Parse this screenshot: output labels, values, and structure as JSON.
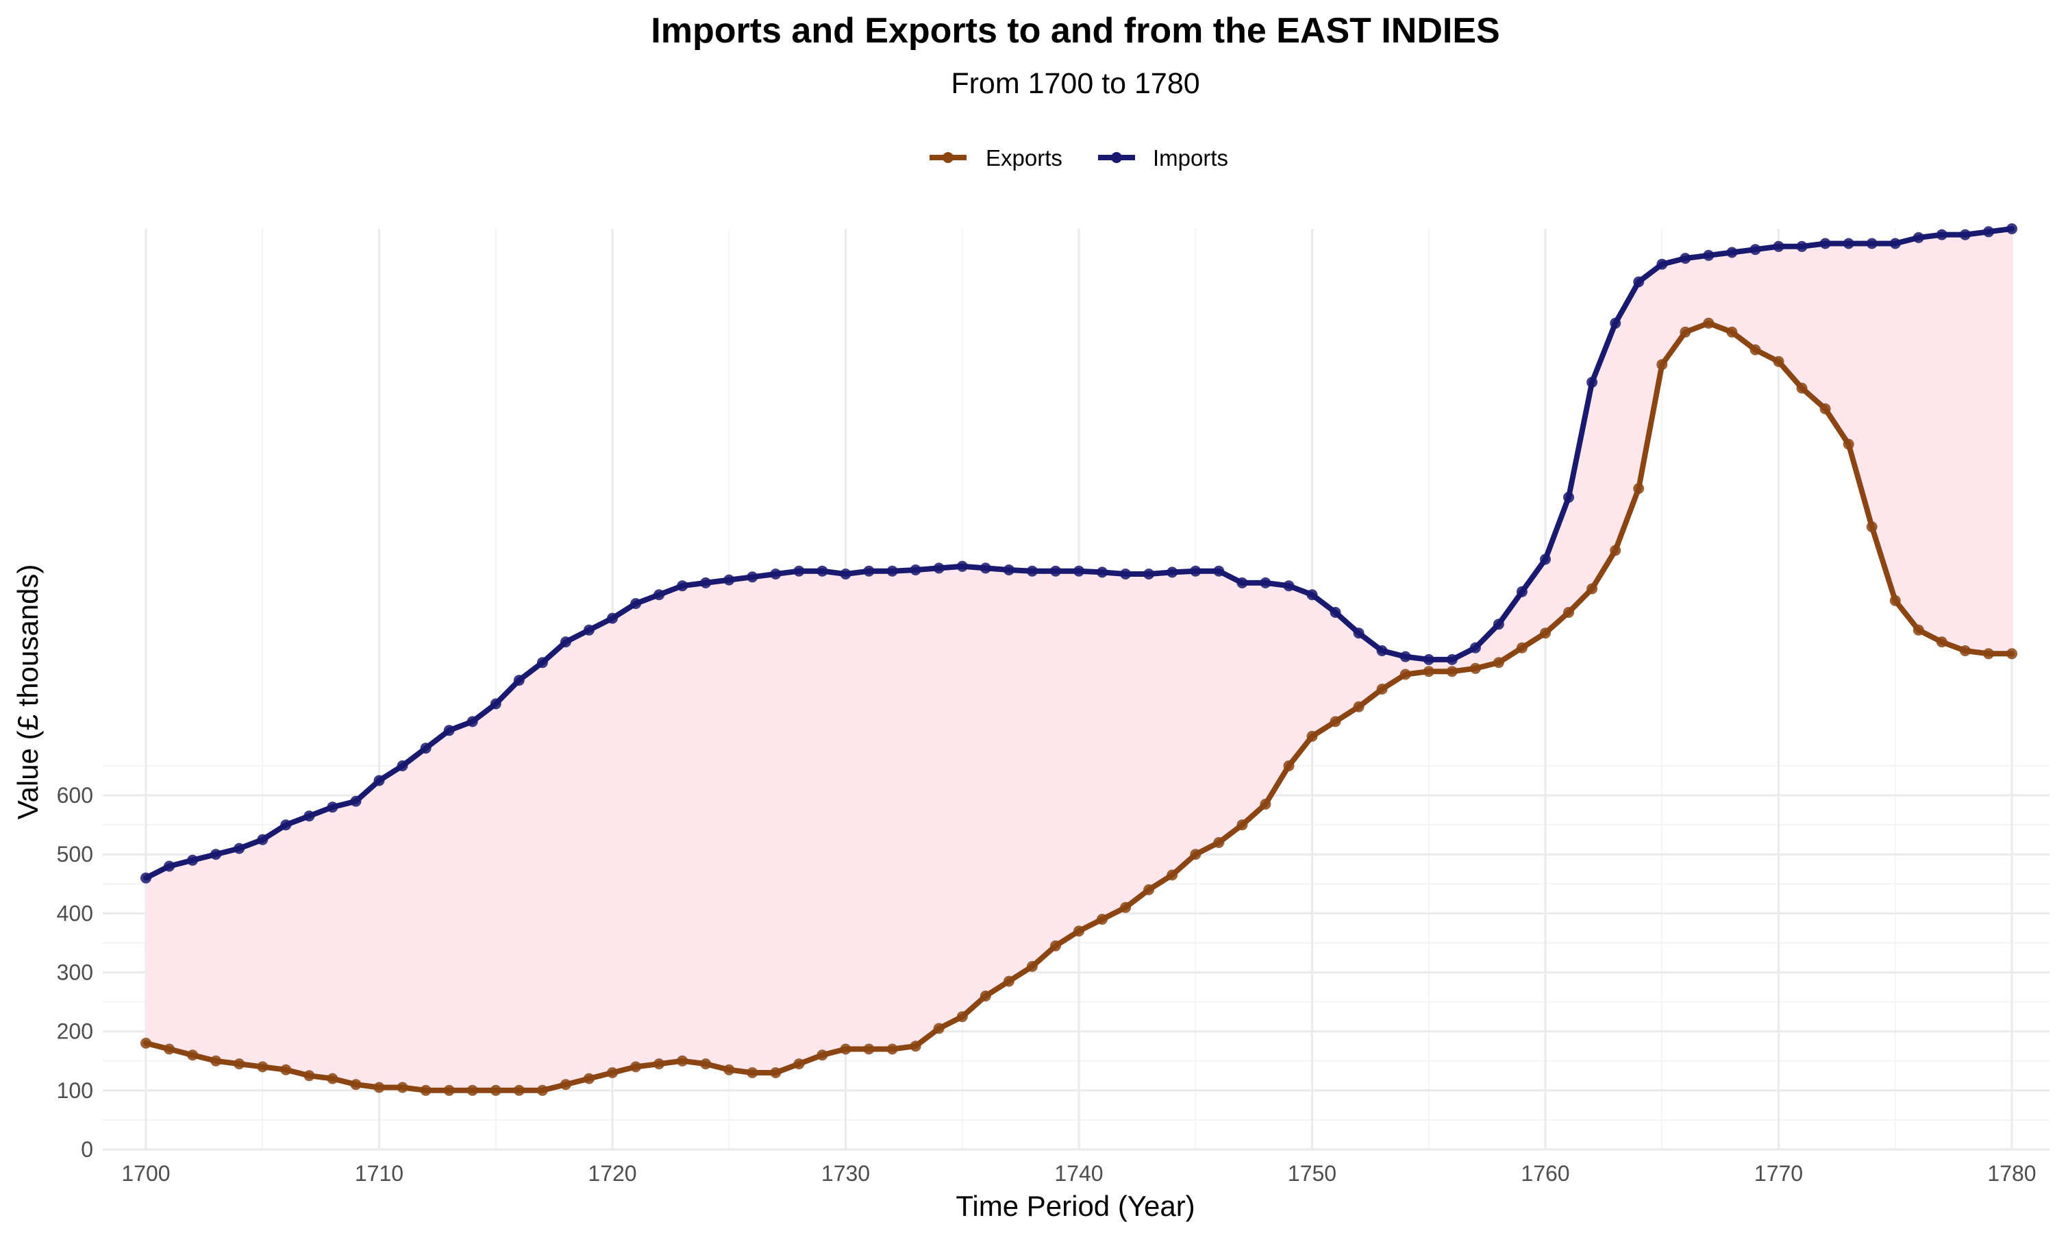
{
  "chart_data": {
    "type": "line",
    "title": "Imports and Exports to and from the EAST INDIES",
    "subtitle": "From 1700 to 1780",
    "xlabel": "Time Period (Year)",
    "ylabel": "Value (£ thousands)",
    "xlim": [
      1700,
      1780
    ],
    "ylim": [
      0,
      1560
    ],
    "x_ticks": [
      1700,
      1710,
      1720,
      1730,
      1740,
      1750,
      1760,
      1770,
      1780
    ],
    "y_ticks": [
      0,
      100,
      200,
      300,
      400,
      500,
      600
    ],
    "grid": true,
    "legend_position": "top",
    "fill_between": {
      "color": "#fde7ec",
      "description": "area between Imports and Exports"
    },
    "years": [
      1700,
      1701,
      1702,
      1703,
      1704,
      1705,
      1706,
      1707,
      1708,
      1709,
      1710,
      1711,
      1712,
      1713,
      1714,
      1715,
      1716,
      1717,
      1718,
      1719,
      1720,
      1721,
      1722,
      1723,
      1724,
      1725,
      1726,
      1727,
      1728,
      1729,
      1730,
      1731,
      1732,
      1733,
      1734,
      1735,
      1736,
      1737,
      1738,
      1739,
      1740,
      1741,
      1742,
      1743,
      1744,
      1745,
      1746,
      1747,
      1748,
      1749,
      1750,
      1751,
      1752,
      1753,
      1754,
      1755,
      1756,
      1757,
      1758,
      1759,
      1760,
      1761,
      1762,
      1763,
      1764,
      1765,
      1766,
      1767,
      1768,
      1769,
      1770,
      1771,
      1772,
      1773,
      1774,
      1775,
      1776,
      1777,
      1778,
      1779,
      1780
    ],
    "series": [
      {
        "name": "Exports",
        "color": "#8b4513",
        "values": [
          180,
          170,
          160,
          150,
          145,
          140,
          135,
          125,
          120,
          110,
          105,
          105,
          100,
          100,
          100,
          100,
          100,
          100,
          110,
          120,
          130,
          140,
          145,
          150,
          145,
          135,
          130,
          130,
          145,
          160,
          170,
          170,
          170,
          175,
          205,
          225,
          260,
          285,
          310,
          345,
          370,
          390,
          410,
          440,
          465,
          500,
          520,
          550,
          585,
          650,
          700,
          725,
          750,
          780,
          805,
          810,
          810,
          815,
          825,
          850,
          875,
          910,
          950,
          1015,
          1120,
          1330,
          1385,
          1400,
          1385,
          1355,
          1335,
          1290,
          1255,
          1195,
          1055,
          930,
          880,
          860,
          845,
          840,
          840
        ]
      },
      {
        "name": "Imports",
        "color": "#191970",
        "values": [
          460,
          480,
          490,
          500,
          510,
          525,
          550,
          565,
          580,
          590,
          625,
          650,
          680,
          710,
          725,
          755,
          795,
          825,
          860,
          880,
          900,
          925,
          940,
          955,
          960,
          965,
          970,
          975,
          980,
          980,
          975,
          980,
          980,
          982,
          985,
          988,
          985,
          982,
          980,
          980,
          980,
          978,
          975,
          975,
          978,
          980,
          980,
          960,
          960,
          955,
          940,
          910,
          875,
          845,
          835,
          830,
          830,
          850,
          890,
          945,
          1000,
          1105,
          1300,
          1400,
          1470,
          1500,
          1510,
          1515,
          1520,
          1525,
          1530,
          1530,
          1535,
          1535,
          1535,
          1535,
          1545,
          1550,
          1550,
          1555,
          1560
        ]
      }
    ]
  }
}
